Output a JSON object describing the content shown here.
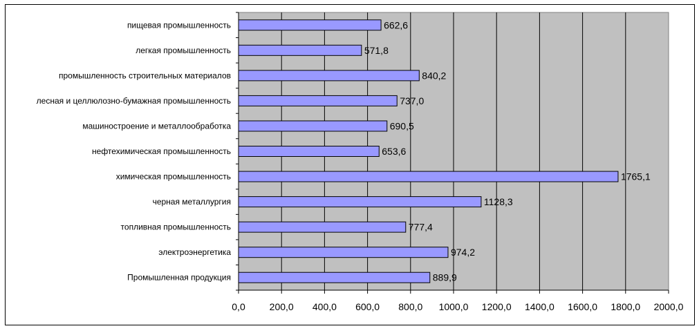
{
  "chart_data": {
    "type": "bar",
    "orientation": "horizontal",
    "categories": [
      "пищевая промышленность",
      "легкая промышленность",
      "промышленность строительных материалов",
      "лесная и целлюлозно-бумажная промышленность",
      "машиностроение и металлообработка",
      "нефтехимическая промышленность",
      "химическая промышленность",
      "черная металлургия",
      "топливная промышленность",
      "электроэнергетика",
      "Промышленная продукция"
    ],
    "values": [
      662.6,
      571.8,
      840.2,
      737.0,
      690.5,
      653.6,
      1765.1,
      1128.3,
      777.4,
      974.2,
      889.9
    ],
    "value_labels": [
      "662,6",
      "571,8",
      "840,2",
      "737,0",
      "690,5",
      "653,6",
      "1765,1",
      "1128,3",
      "777,4",
      "974,2",
      "889,9"
    ],
    "xlim": [
      0,
      2000
    ],
    "x_ticks": [
      0,
      200,
      400,
      600,
      800,
      1000,
      1200,
      1400,
      1600,
      1800,
      2000
    ],
    "x_tick_labels": [
      "0,0",
      "200,0",
      "400,0",
      "600,0",
      "800,0",
      "1000,0",
      "1200,0",
      "1400,0",
      "1600,0",
      "1800,0",
      "2000,0"
    ],
    "grid": true,
    "title": "",
    "xlabel": "",
    "ylabel": "",
    "colors": {
      "bar_fill": "#9999ff",
      "bar_stroke": "#000000",
      "plot_background": "#c0c0c0",
      "grid": "#000000"
    }
  }
}
